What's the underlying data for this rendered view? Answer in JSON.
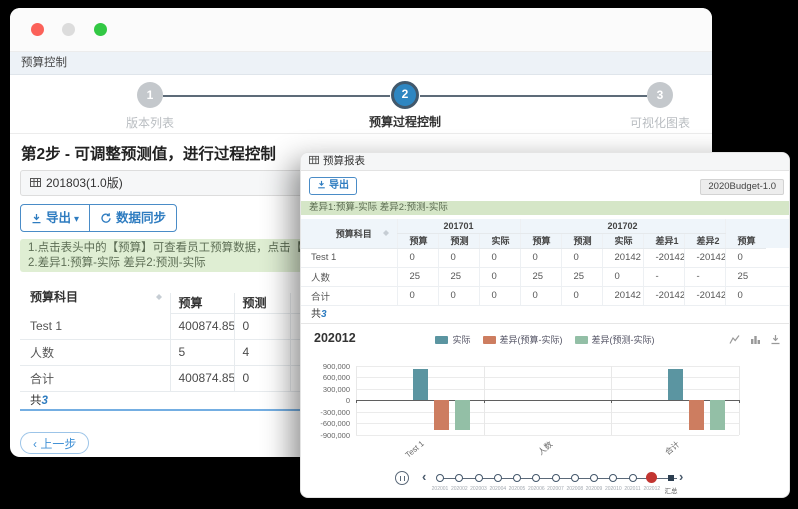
{
  "colors": {
    "accent_blue": "#2e7cc0",
    "step_active_blue": "#2e86c1",
    "note_green_bg": "#dfeed3",
    "bar_actual": "#5b95a1",
    "bar_diff_budget": "#cd7d60",
    "bar_diff_forecast": "#93bfa6",
    "timeline_current_red": "#c23531"
  },
  "icons": {
    "panel_icon": "table-grid",
    "export_icon": "download-arrow",
    "sync_icon": "refresh",
    "caret": "▾",
    "sort_icon": "up-down-carets",
    "prev_chevron": "‹",
    "timeline_play": "pause-circle",
    "timeline_prev": "‹",
    "timeline_next": "›",
    "toolbox": [
      "line-chart",
      "bar-chart",
      "download"
    ]
  },
  "back": {
    "title": "预算控制",
    "steps": [
      {
        "num": "1",
        "label": "版本列表",
        "state": "inactive"
      },
      {
        "num": "2",
        "label": "预算过程控制",
        "state": "active"
      },
      {
        "num": "3",
        "label": "可视化图表",
        "state": "inactive"
      }
    ],
    "heading": "第2步 - 可调整预测值，进行过程控制",
    "panel_title": "201803(1.0版)",
    "export_label": "导出",
    "sync_label": "数据同步",
    "notes": [
      "1.点击表头中的【预算】可查看员工预算数据，点击【实际】可查看员工实际数据",
      "2.差异1:预算-实际 差异2:预测-实际"
    ],
    "table": {
      "subject_col": "预算科目",
      "cols": [
        "预算",
        "预测"
      ],
      "rows": [
        {
          "name": "Test 1",
          "values": [
            "400874.85",
            "0"
          ]
        },
        {
          "name": "人数",
          "values": [
            "5",
            "4"
          ]
        },
        {
          "name": "合计",
          "values": [
            "400874.85",
            "0"
          ]
        }
      ],
      "footer_prefix": "共",
      "footer_count": "3"
    },
    "prev_label": "上一步"
  },
  "front": {
    "panel_title": "预算报表",
    "export_label": "导出",
    "version_label": "2020Budget-1.0",
    "note": "差异1:预算-实际 差异2:预测-实际",
    "table": {
      "subject_col": "预算科目",
      "groups": [
        {
          "label": "201701",
          "cols": [
            "预算",
            "预测",
            "实际"
          ]
        },
        {
          "label": "201702",
          "cols": [
            "预算",
            "预测",
            "实际",
            "差异1",
            "差异2"
          ]
        },
        {
          "label": "",
          "cols": [
            "预算"
          ]
        }
      ],
      "rows": [
        {
          "name": "Test 1",
          "values": [
            "0",
            "0",
            "0",
            "0",
            "0",
            "20142",
            "-20142",
            "-20142",
            "0"
          ]
        },
        {
          "name": "人数",
          "values": [
            "25",
            "25",
            "0",
            "25",
            "25",
            "0",
            "-",
            "-",
            "25"
          ]
        },
        {
          "name": "合计",
          "values": [
            "0",
            "0",
            "0",
            "0",
            "0",
            "20142",
            "-20142",
            "-20142",
            "0"
          ]
        }
      ],
      "footer_prefix": "共",
      "footer_count": "3"
    },
    "chart_data": {
      "type": "bar",
      "title": "202012",
      "categories": [
        "Test 1",
        "人数",
        "合计"
      ],
      "series": [
        {
          "name": "实际",
          "color": "#5b95a1",
          "values": [
            800000,
            0,
            800000
          ]
        },
        {
          "name": "差异(预算-实际)",
          "color": "#cd7d60",
          "values": [
            -780000,
            0,
            -780000
          ]
        },
        {
          "name": "差异(预测-实际)",
          "color": "#93bfa6",
          "values": [
            -780000,
            0,
            -780000
          ]
        }
      ],
      "ylim": [
        -900000,
        900000
      ],
      "yticks": [
        "900,000",
        "600,000",
        "300,000",
        "0",
        "-300,000",
        "-600,000",
        "-900,000"
      ],
      "grid": true,
      "legend_position": "top-center"
    },
    "timeline": {
      "labels": [
        "202001",
        "202002",
        "202003",
        "202004",
        "202005",
        "202006",
        "202007",
        "202008",
        "202009",
        "202010",
        "202011",
        "202012",
        "汇总"
      ],
      "selected": "202012",
      "selected_index": 11
    }
  }
}
